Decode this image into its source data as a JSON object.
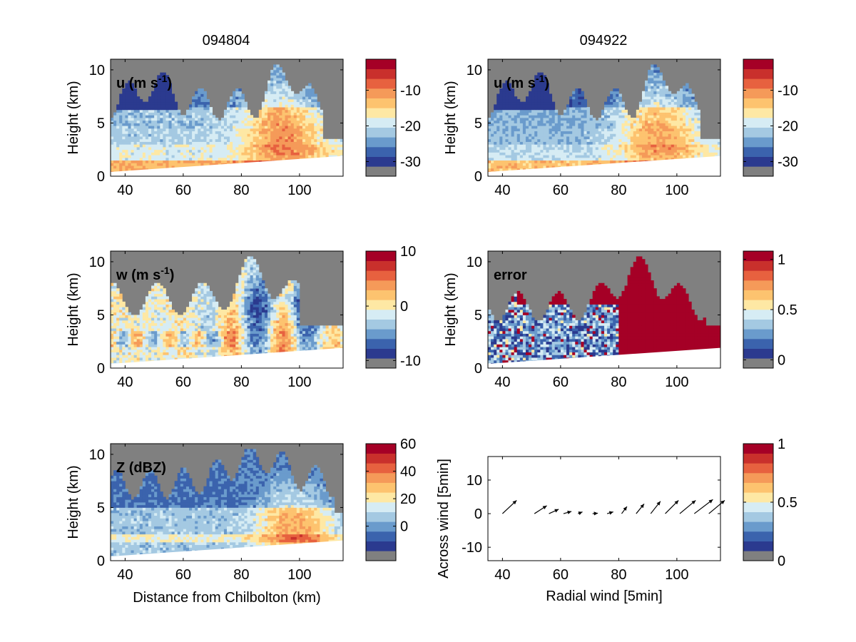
{
  "titles": [
    "094804",
    "094922"
  ],
  "colormap": [
    "#808080",
    "#2b3a8f",
    "#3b63ad",
    "#6a9bcc",
    "#a4c9e2",
    "#d6ecf4",
    "#fee8a4",
    "#fdc36f",
    "#f59a59",
    "#e7613f",
    "#c9302c",
    "#a50026"
  ],
  "panels": [
    {
      "label": "u (m s",
      "sup": "-1",
      "close": ")",
      "ylabel": "Height (km)",
      "xlabel": "",
      "kind": "u"
    },
    {
      "label": "u (m s",
      "sup": "-1",
      "close": ")",
      "ylabel": "Height (km)",
      "xlabel": "",
      "kind": "u2"
    },
    {
      "label": "w (m s",
      "sup": "-1",
      "close": ")",
      "ylabel": "Height (km)",
      "xlabel": "",
      "kind": "w"
    },
    {
      "label": "error",
      "sup": "",
      "close": "",
      "ylabel": "Height (km)",
      "xlabel": "",
      "kind": "err"
    },
    {
      "label": "Z (dBZ)",
      "sup": "",
      "close": "",
      "ylabel": "Height (km)",
      "xlabel": "Distance from Chilbolton (km)",
      "kind": "z"
    },
    {
      "label": "",
      "sup": "",
      "close": "",
      "ylabel": "Across wind [5min]",
      "xlabel": "Radial wind [5min]",
      "kind": "quiver"
    }
  ],
  "colorbars": [
    {
      "ticks": [
        "-10",
        "-20",
        "-30"
      ]
    },
    {
      "ticks": [
        "-10",
        "-20",
        "-30"
      ]
    },
    {
      "ticks": [
        "10",
        "0",
        "-10"
      ]
    },
    {
      "ticks": [
        "1",
        "0.5",
        "0"
      ]
    },
    {
      "ticks": [
        "60",
        "40",
        "20",
        "0"
      ]
    },
    {
      "ticks": [
        "1",
        "0.5",
        "0"
      ]
    }
  ],
  "chart_data": [
    {
      "type": "heatmap",
      "title": "094804",
      "label": "u (m s-1)",
      "ylabel": "Height (km)",
      "x_ticks": [
        40,
        60,
        80,
        100
      ],
      "y_ticks": [
        0,
        5,
        10
      ],
      "xlim": [
        35,
        115
      ],
      "ylim": [
        0,
        11
      ],
      "colorbar_ticks": [
        -10,
        -20,
        -30
      ]
    },
    {
      "type": "heatmap",
      "title": "094922",
      "label": "u (m s-1)",
      "ylabel": "Height (km)",
      "x_ticks": [
        40,
        60,
        80,
        100
      ],
      "y_ticks": [
        0,
        5,
        10
      ],
      "xlim": [
        35,
        115
      ],
      "ylim": [
        0,
        11
      ],
      "colorbar_ticks": [
        -10,
        -20,
        -30
      ]
    },
    {
      "type": "heatmap",
      "label": "w (m s-1)",
      "ylabel": "Height (km)",
      "x_ticks": [
        40,
        60,
        80,
        100
      ],
      "y_ticks": [
        0,
        5,
        10
      ],
      "xlim": [
        35,
        115
      ],
      "ylim": [
        0,
        11
      ],
      "colorbar_ticks": [
        10,
        0,
        -10
      ]
    },
    {
      "type": "heatmap",
      "label": "error",
      "ylabel": "Height (km)",
      "x_ticks": [
        40,
        60,
        80,
        100
      ],
      "y_ticks": [
        0,
        5,
        10
      ],
      "xlim": [
        35,
        115
      ],
      "ylim": [
        0,
        11
      ],
      "colorbar_ticks": [
        1,
        0.5,
        0
      ]
    },
    {
      "type": "heatmap",
      "label": "Z (dBZ)",
      "ylabel": "Height (km)",
      "xlabel": "Distance from Chilbolton (km)",
      "x_ticks": [
        40,
        60,
        80,
        100
      ],
      "y_ticks": [
        0,
        5,
        10
      ],
      "xlim": [
        35,
        115
      ],
      "ylim": [
        0,
        11
      ],
      "colorbar_ticks": [
        60,
        40,
        20,
        0
      ]
    },
    {
      "type": "scatter",
      "xlabel": "Radial wind [5min]",
      "ylabel": "Across wind [5min]",
      "x_ticks": [
        40,
        60,
        80,
        100
      ],
      "y_ticks": [
        10,
        0,
        -10
      ],
      "xlim": [
        35,
        115
      ],
      "ylim": [
        -14,
        17
      ],
      "colorbar_ticks": [
        1,
        0.5,
        0
      ],
      "arrows": [
        {
          "x": 40,
          "y": 0,
          "u": 3.2,
          "v": 3.0
        },
        {
          "x": 51,
          "y": 0,
          "u": 2.8,
          "v": 1.8
        },
        {
          "x": 56,
          "y": 0,
          "u": 2.2,
          "v": 1.0
        },
        {
          "x": 61,
          "y": 0,
          "u": 1.8,
          "v": 0.5
        },
        {
          "x": 66,
          "y": 0,
          "u": 1.0,
          "v": 0.4
        },
        {
          "x": 71,
          "y": 0,
          "u": 1.2,
          "v": 0.1
        },
        {
          "x": 76,
          "y": 0,
          "u": 1.4,
          "v": 0.4
        },
        {
          "x": 81,
          "y": 0,
          "u": 1.2,
          "v": 1.6
        },
        {
          "x": 86,
          "y": 0,
          "u": 1.8,
          "v": 2.2
        },
        {
          "x": 91,
          "y": 0,
          "u": 2.2,
          "v": 2.8
        },
        {
          "x": 96,
          "y": 0,
          "u": 3.0,
          "v": 3.0
        },
        {
          "x": 101,
          "y": 0,
          "u": 3.6,
          "v": 3.0
        },
        {
          "x": 106,
          "y": 0,
          "u": 4.2,
          "v": 3.2
        },
        {
          "x": 111,
          "y": 0,
          "u": 3.6,
          "v": 3.0
        }
      ]
    }
  ]
}
